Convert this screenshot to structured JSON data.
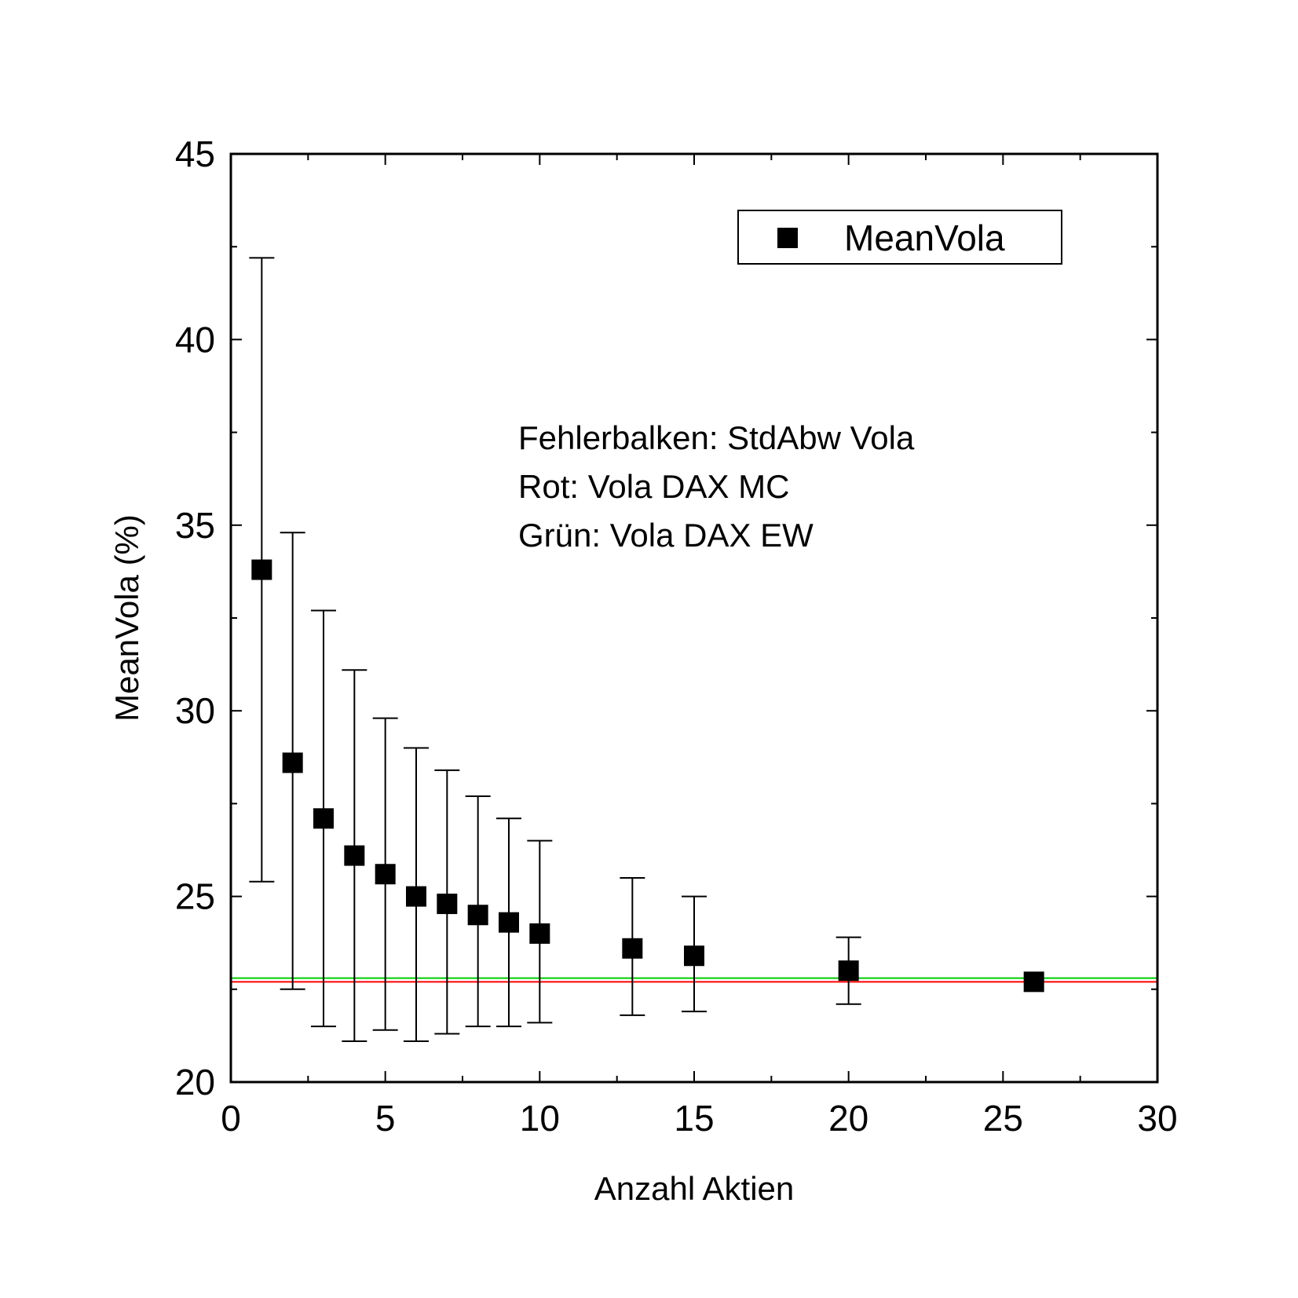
{
  "chart_data": {
    "type": "scatter",
    "title": "",
    "xlabel": "Anzahl Aktien",
    "ylabel": "MeanVola (%)",
    "xlim": [
      0,
      30
    ],
    "ylim": [
      20,
      45
    ],
    "x_ticks": [
      0,
      5,
      10,
      15,
      20,
      25,
      30
    ],
    "y_ticks": [
      20,
      25,
      30,
      35,
      40,
      45
    ],
    "grid": false,
    "legend_position": "top-right",
    "series": [
      {
        "name": "MeanVola",
        "marker": "square",
        "color": "#000000",
        "points": [
          {
            "x": 1,
            "y": 33.8,
            "err_low": 25.4,
            "err_high": 42.2
          },
          {
            "x": 2,
            "y": 28.6,
            "err_low": 22.5,
            "err_high": 34.8
          },
          {
            "x": 3,
            "y": 27.1,
            "err_low": 21.5,
            "err_high": 32.7
          },
          {
            "x": 4,
            "y": 26.1,
            "err_low": 21.1,
            "err_high": 31.1
          },
          {
            "x": 5,
            "y": 25.6,
            "err_low": 21.4,
            "err_high": 29.8
          },
          {
            "x": 6,
            "y": 25.0,
            "err_low": 21.1,
            "err_high": 29.0
          },
          {
            "x": 7,
            "y": 24.8,
            "err_low": 21.3,
            "err_high": 28.4
          },
          {
            "x": 8,
            "y": 24.5,
            "err_low": 21.5,
            "err_high": 27.7
          },
          {
            "x": 9,
            "y": 24.3,
            "err_low": 21.5,
            "err_high": 27.1
          },
          {
            "x": 10,
            "y": 24.0,
            "err_low": 21.6,
            "err_high": 26.5
          },
          {
            "x": 13,
            "y": 23.6,
            "err_low": 21.8,
            "err_high": 25.5
          },
          {
            "x": 15,
            "y": 23.4,
            "err_low": 21.9,
            "err_high": 25.0
          },
          {
            "x": 20,
            "y": 23.0,
            "err_low": 22.1,
            "err_high": 23.9
          },
          {
            "x": 26,
            "y": 22.7,
            "err_low": 22.7,
            "err_high": 22.7
          }
        ]
      }
    ],
    "reference_lines": [
      {
        "y": 22.7,
        "color": "#ff0000"
      },
      {
        "y": 22.8,
        "color": "#00cc00"
      }
    ],
    "annotations": [
      "Fehlerbalken: StdAbw Vola",
      "Rot: Vola DAX MC",
      "Grün: Vola DAX EW"
    ]
  }
}
